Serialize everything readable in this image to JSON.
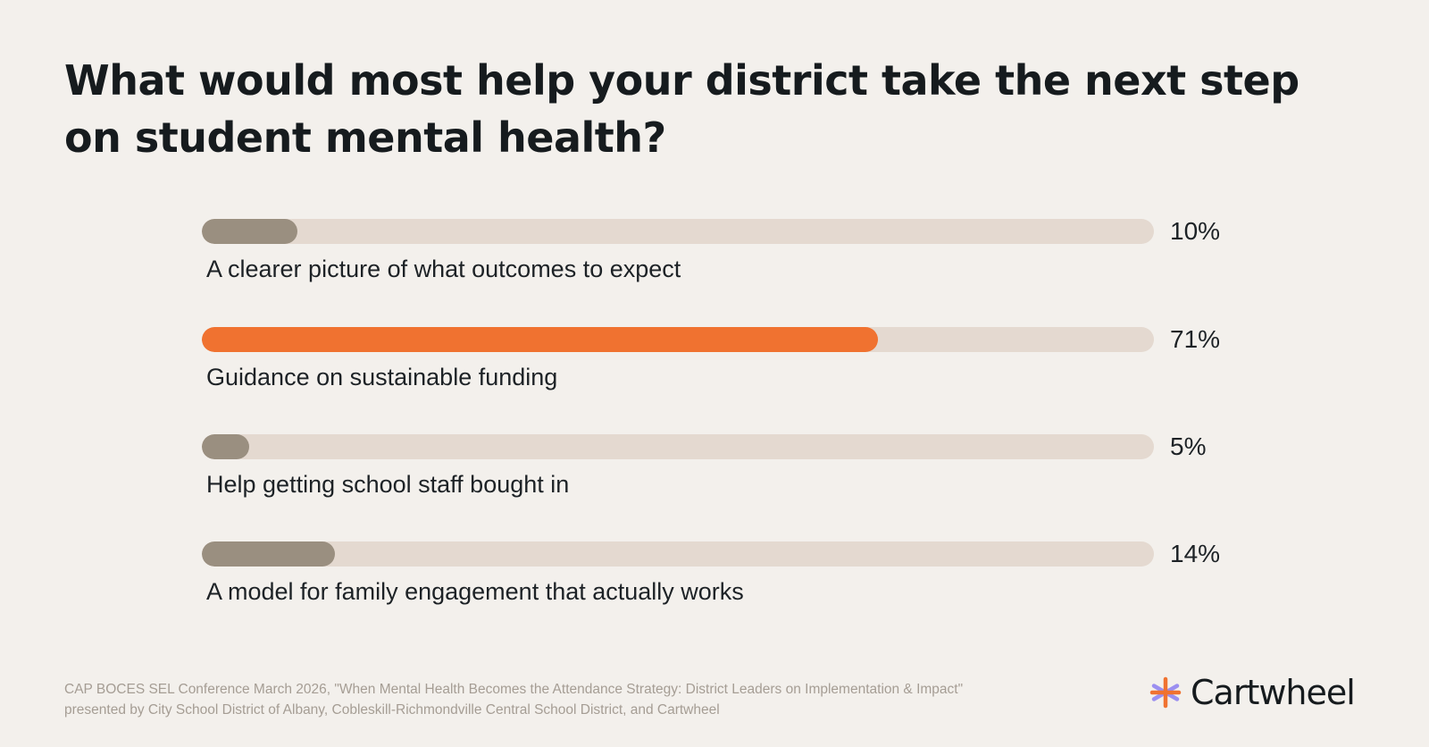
{
  "colors": {
    "background": "#f3f0ec",
    "track": "#e4d9d0",
    "highlight_bar": "#f07230",
    "default_bar": "#9a8f80",
    "footer_text": "#a59d94",
    "logo_orange": "#f07230",
    "logo_purple": "#9b8ff0"
  },
  "chart_data": {
    "type": "bar",
    "orientation": "horizontal",
    "title": "What would most help your district take the next step on student mental health?",
    "categories": [
      "A clearer picture of what outcomes to expect",
      "Guidance on sustainable funding",
      "Help getting school staff bought in",
      "A model for family engagement that actually works"
    ],
    "values": [
      10,
      71,
      5,
      14
    ],
    "value_labels": [
      "10%",
      "71%",
      "5%",
      "14%"
    ],
    "xlim": [
      0,
      100
    ],
    "unit": "%",
    "highlighted_index": 1,
    "grid": false,
    "legend": "none"
  },
  "footer": {
    "source": "CAP BOCES SEL Conference March 2026, \"When Mental Health Becomes the Attendance Strategy: District Leaders on Implementation & Impact\" presented by City School District of Albany, Cobleskill-Richmondville Central School District, and Cartwheel"
  },
  "brand": {
    "name": "Cartwheel",
    "logo_icon": "asterisk-logo-icon"
  }
}
